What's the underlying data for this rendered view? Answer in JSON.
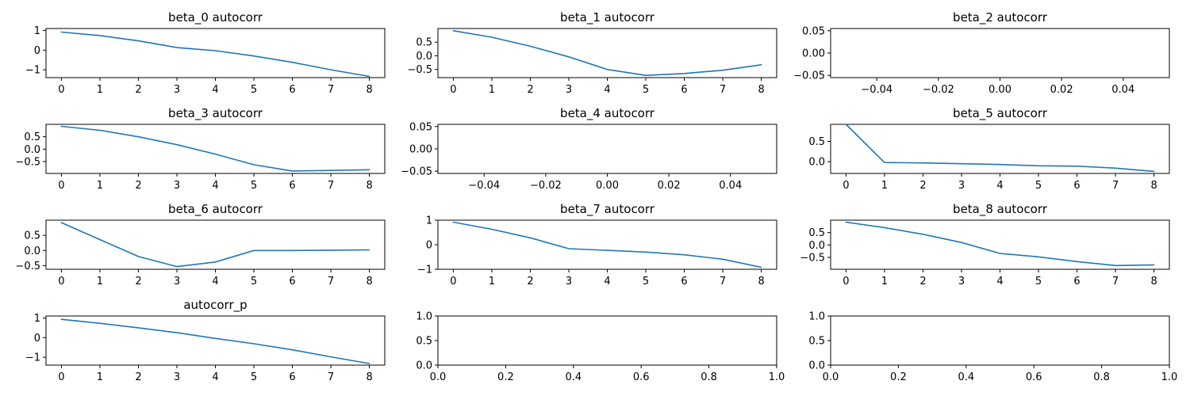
{
  "figure": {
    "line_color": "#1f77b4",
    "background": "#ffffff"
  },
  "chart_data": [
    {
      "id": "beta_0",
      "type": "line",
      "title": "beta_0 autocorr",
      "x": [
        0,
        1,
        2,
        3,
        4,
        5,
        6,
        7,
        8
      ],
      "y": [
        0.92,
        0.74,
        0.47,
        0.13,
        -0.03,
        -0.3,
        -0.62,
        -1.0,
        -1.34
      ],
      "xlim": [
        -0.4,
        8.4
      ],
      "ylim": [
        -1.4,
        1.1
      ],
      "xticks": [
        0,
        1,
        2,
        3,
        4,
        5,
        6,
        7,
        8
      ],
      "xtick_labels": [
        "0",
        "1",
        "2",
        "3",
        "4",
        "5",
        "6",
        "7",
        "8"
      ],
      "yticks": [
        1,
        0,
        -1
      ],
      "ytick_labels": [
        "1",
        "0",
        "−1"
      ]
    },
    {
      "id": "beta_1",
      "type": "line",
      "title": "beta_1 autocorr",
      "x": [
        0,
        1,
        2,
        3,
        4,
        5,
        6,
        7,
        8
      ],
      "y": [
        0.92,
        0.68,
        0.35,
        -0.04,
        -0.5,
        -0.72,
        -0.65,
        -0.53,
        -0.33
      ],
      "xlim": [
        -0.4,
        8.4
      ],
      "ylim": [
        -0.8,
        1.0
      ],
      "xticks": [
        0,
        1,
        2,
        3,
        4,
        5,
        6,
        7,
        8
      ],
      "xtick_labels": [
        "0",
        "1",
        "2",
        "3",
        "4",
        "5",
        "6",
        "7",
        "8"
      ],
      "yticks": [
        0.5,
        0.0,
        -0.5
      ],
      "ytick_labels": [
        "0.5",
        "0.0",
        "−0.5"
      ]
    },
    {
      "id": "beta_2",
      "type": "line",
      "title": "beta_2 autocorr",
      "x": [],
      "y": [],
      "xlim": [
        -0.055,
        0.055
      ],
      "ylim": [
        -0.055,
        0.055
      ],
      "xticks": [
        -0.04,
        -0.02,
        0.0,
        0.02,
        0.04
      ],
      "xtick_labels": [
        "−0.04",
        "−0.02",
        "0.00",
        "0.02",
        "0.04"
      ],
      "yticks": [
        0.05,
        0.0,
        -0.05
      ],
      "ytick_labels": [
        "0.05",
        "0.00",
        "−0.05"
      ]
    },
    {
      "id": "beta_3",
      "type": "line",
      "title": "beta_3 autocorr",
      "x": [
        0,
        1,
        2,
        3,
        4,
        5,
        6,
        7,
        8
      ],
      "y": [
        0.92,
        0.76,
        0.5,
        0.18,
        -0.2,
        -0.63,
        -0.88,
        -0.86,
        -0.83
      ],
      "xlim": [
        -0.4,
        8.4
      ],
      "ylim": [
        -0.98,
        1.0
      ],
      "xticks": [
        0,
        1,
        2,
        3,
        4,
        5,
        6,
        7,
        8
      ],
      "xtick_labels": [
        "0",
        "1",
        "2",
        "3",
        "4",
        "5",
        "6",
        "7",
        "8"
      ],
      "yticks": [
        0.5,
        0.0,
        -0.5
      ],
      "ytick_labels": [
        "0.5",
        "0.0",
        "−0.5"
      ]
    },
    {
      "id": "beta_4",
      "type": "line",
      "title": "beta_4 autocorr",
      "x": [],
      "y": [],
      "xlim": [
        -0.055,
        0.055
      ],
      "ylim": [
        -0.055,
        0.055
      ],
      "xticks": [
        -0.04,
        -0.02,
        0.0,
        0.02,
        0.04
      ],
      "xtick_labels": [
        "−0.04",
        "−0.02",
        "0.00",
        "0.02",
        "0.04"
      ],
      "yticks": [
        0.05,
        0.0,
        -0.05
      ],
      "ytick_labels": [
        "0.05",
        "0.00",
        "−0.05"
      ]
    },
    {
      "id": "beta_5",
      "type": "line",
      "title": "beta_5 autocorr",
      "x": [
        0,
        1,
        2,
        3,
        4,
        5,
        6,
        7,
        8
      ],
      "y": [
        0.92,
        -0.02,
        -0.03,
        -0.05,
        -0.07,
        -0.1,
        -0.11,
        -0.16,
        -0.24
      ],
      "xlim": [
        -0.4,
        8.4
      ],
      "ylim": [
        -0.29,
        0.92
      ],
      "xticks": [
        0,
        1,
        2,
        3,
        4,
        5,
        6,
        7,
        8
      ],
      "xtick_labels": [
        "0",
        "1",
        "2",
        "3",
        "4",
        "5",
        "6",
        "7",
        "8"
      ],
      "yticks": [
        0.5,
        0.0
      ],
      "ytick_labels": [
        "0.5",
        "0.0"
      ]
    },
    {
      "id": "beta_6",
      "type": "line",
      "title": "beta_6 autocorr",
      "x": [
        0,
        1,
        2,
        3,
        4,
        5,
        6,
        7,
        8
      ],
      "y": [
        0.92,
        0.36,
        -0.2,
        -0.53,
        -0.38,
        0.0,
        0.0,
        0.01,
        0.02
      ],
      "xlim": [
        -0.4,
        8.4
      ],
      "ylim": [
        -0.62,
        1.0
      ],
      "xticks": [
        0,
        1,
        2,
        3,
        4,
        5,
        6,
        7,
        8
      ],
      "xtick_labels": [
        "0",
        "1",
        "2",
        "3",
        "4",
        "5",
        "6",
        "7",
        "8"
      ],
      "yticks": [
        0.5,
        0.0,
        -0.5
      ],
      "ytick_labels": [
        "0.5",
        "0.0",
        "−0.5"
      ]
    },
    {
      "id": "beta_7",
      "type": "line",
      "title": "beta_7 autocorr",
      "x": [
        0,
        1,
        2,
        3,
        4,
        5,
        6,
        7,
        8
      ],
      "y": [
        0.92,
        0.63,
        0.28,
        -0.16,
        -0.23,
        -0.3,
        -0.41,
        -0.59,
        -0.92
      ],
      "xlim": [
        -0.4,
        8.4
      ],
      "ylim": [
        -1.0,
        1.0
      ],
      "xticks": [
        0,
        1,
        2,
        3,
        4,
        5,
        6,
        7,
        8
      ],
      "xtick_labels": [
        "0",
        "1",
        "2",
        "3",
        "4",
        "5",
        "6",
        "7",
        "8"
      ],
      "yticks": [
        1,
        0,
        -1
      ],
      "ytick_labels": [
        "1",
        "0",
        "−1"
      ]
    },
    {
      "id": "beta_8",
      "type": "line",
      "title": "beta_8 autocorr",
      "x": [
        0,
        1,
        2,
        3,
        4,
        5,
        6,
        7,
        8
      ],
      "y": [
        0.92,
        0.7,
        0.43,
        0.1,
        -0.34,
        -0.48,
        -0.67,
        -0.83,
        -0.8
      ],
      "xlim": [
        -0.4,
        8.4
      ],
      "ylim": [
        -0.98,
        1.0
      ],
      "xticks": [
        0,
        1,
        2,
        3,
        4,
        5,
        6,
        7,
        8
      ],
      "xtick_labels": [
        "0",
        "1",
        "2",
        "3",
        "4",
        "5",
        "6",
        "7",
        "8"
      ],
      "yticks": [
        0.5,
        0.0,
        -0.5
      ],
      "ytick_labels": [
        "0.5",
        "0.0",
        "−0.5"
      ]
    },
    {
      "id": "autocorr_p",
      "type": "line",
      "title": "autocorr_p",
      "x": [
        0,
        1,
        2,
        3,
        4,
        5,
        6,
        7,
        8
      ],
      "y": [
        0.93,
        0.73,
        0.5,
        0.25,
        -0.04,
        -0.31,
        -0.62,
        -0.98,
        -1.32
      ],
      "xlim": [
        -0.4,
        8.4
      ],
      "ylim": [
        -1.4,
        1.1
      ],
      "xticks": [
        0,
        1,
        2,
        3,
        4,
        5,
        6,
        7,
        8
      ],
      "xtick_labels": [
        "0",
        "1",
        "2",
        "3",
        "4",
        "5",
        "6",
        "7",
        "8"
      ],
      "yticks": [
        1,
        0,
        -1
      ],
      "ytick_labels": [
        "1",
        "0",
        "−1"
      ]
    },
    {
      "id": "blank_1",
      "type": "line",
      "title": "",
      "x": [],
      "y": [],
      "xlim": [
        0.0,
        1.0
      ],
      "ylim": [
        0.0,
        1.0
      ],
      "xticks": [
        0.0,
        0.2,
        0.4,
        0.6,
        0.8,
        1.0
      ],
      "xtick_labels": [
        "0.0",
        "0.2",
        "0.4",
        "0.6",
        "0.8",
        "1.0"
      ],
      "yticks": [
        0.0,
        0.5,
        1.0
      ],
      "ytick_labels": [
        "0.0",
        "0.5",
        "1.0"
      ]
    },
    {
      "id": "blank_2",
      "type": "line",
      "title": "",
      "x": [],
      "y": [],
      "xlim": [
        0.0,
        1.0
      ],
      "ylim": [
        0.0,
        1.0
      ],
      "xticks": [
        0.0,
        0.2,
        0.4,
        0.6,
        0.8,
        1.0
      ],
      "xtick_labels": [
        "0.0",
        "0.2",
        "0.4",
        "0.6",
        "0.8",
        "1.0"
      ],
      "yticks": [
        0.0,
        0.5,
        1.0
      ],
      "ytick_labels": [
        "0.0",
        "0.5",
        "1.0"
      ]
    }
  ]
}
